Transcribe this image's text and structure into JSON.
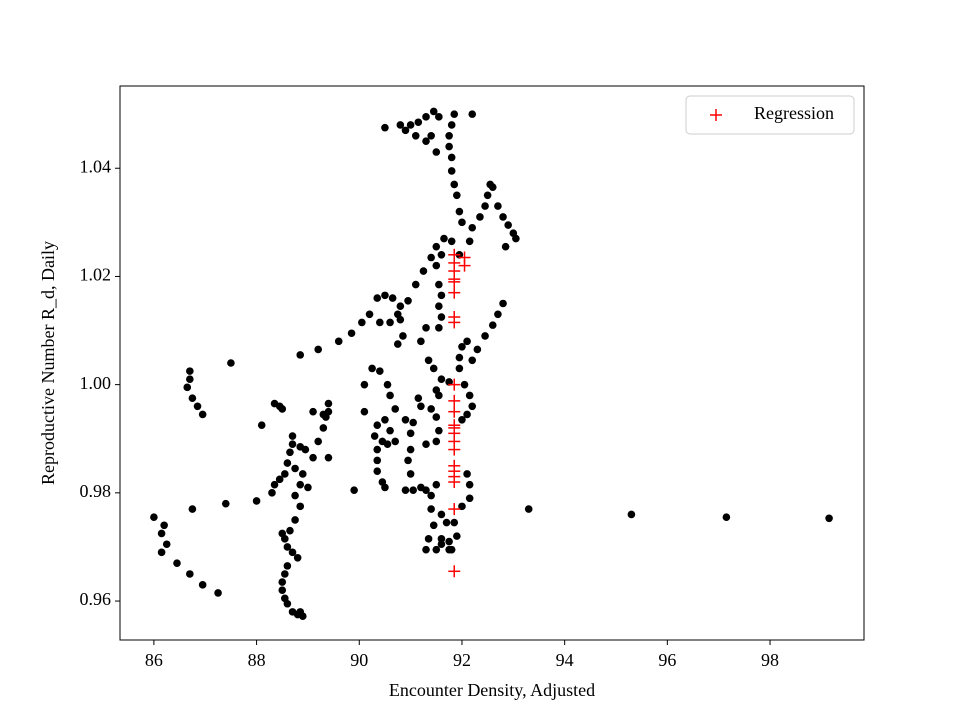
{
  "chart_data": {
    "type": "scatter",
    "x_label": "Encounter Density, Adjusted",
    "y_label": "Reproductive Number R_d, Daily",
    "xlim": [
      85.34,
      99.83
    ],
    "ylim": [
      0.9528,
      1.0552
    ],
    "xticks": [
      86,
      88,
      90,
      92,
      94,
      96,
      98
    ],
    "yticks": [
      0.96,
      0.98,
      {
        "value": 1,
        "label": "1.00"
      },
      1.02,
      1.04
    ],
    "legend_loc": "upper right",
    "series": [
      {
        "color": "#000000",
        "marker": "o",
        "x": [
          86.0,
          86.15,
          86.2,
          86.25,
          86.15,
          86.45,
          86.7,
          86.95,
          87.25,
          86.7,
          86.7,
          86.65,
          86.75,
          86.85,
          86.95,
          87.5,
          86.75,
          87.4,
          88.0,
          88.1,
          88.35,
          88.45,
          88.5,
          88.7,
          88.7,
          88.65,
          88.6,
          88.55,
          88.45,
          88.35,
          88.3,
          88.75,
          88.9,
          88.85,
          88.75,
          89.0,
          89.1,
          89.2,
          89.3,
          89.35,
          89.4,
          89.4,
          89.3,
          89.1,
          88.85,
          88.95,
          88.85,
          88.75,
          88.65,
          88.55,
          88.5,
          88.6,
          88.7,
          88.8,
          88.6,
          88.55,
          88.5,
          88.5,
          88.55,
          88.6,
          88.7,
          88.8,
          88.9,
          88.85,
          88.85,
          89.2,
          89.6,
          89.85,
          90.05,
          90.2,
          90.35,
          90.5,
          90.65,
          90.8,
          90.75,
          90.4,
          90.6,
          90.8,
          90.85,
          90.75,
          90.95,
          91.1,
          91.25,
          91.4,
          91.5,
          91.65,
          91.8,
          91.95,
          91.6,
          91.5,
          91.55,
          91.6,
          91.55,
          91.6,
          91.55,
          91.3,
          91.2,
          91.35,
          91.45,
          91.6,
          91.75,
          91.5,
          91.55,
          90.1,
          90.25,
          90.4,
          90.55,
          90.6,
          90.7,
          90.5,
          90.35,
          90.3,
          90.35,
          90.35,
          90.35,
          90.45,
          90.5,
          90.45,
          90.55,
          90.7,
          90.6,
          90.1,
          89.9,
          89.4,
          90.9,
          91.0,
          91.0,
          90.95,
          91.0,
          90.9,
          91.05,
          91.3,
          91.4,
          91.5,
          91.2,
          91.4,
          91.6,
          91.7,
          91.45,
          91.35,
          91.3,
          91.5,
          91.6,
          91.75,
          91.8,
          91.6,
          91.2,
          91.4,
          91.5,
          91.55,
          91.5,
          91.3,
          91.05,
          91.15,
          92.0,
          92.1,
          92.2,
          92.15,
          92.05,
          91.95,
          91.95,
          92.0,
          92.1,
          92.2,
          92.3,
          92.45,
          92.6,
          92.7,
          92.8,
          92.1,
          92.15,
          92.15,
          92.0,
          91.85,
          91.9,
          91.75,
          92.15,
          92.2,
          92.35,
          92.45,
          92.5,
          92.55,
          92.6,
          92.7,
          92.8,
          92.9,
          93.0,
          93.05,
          92.85,
          92.0,
          91.95,
          91.9,
          91.85,
          91.8,
          91.8,
          91.75,
          91.75,
          91.8,
          91.85,
          92.2,
          91.45,
          91.55,
          91.3,
          91.15,
          91.0,
          90.9,
          90.5,
          90.8,
          91.1,
          91.3,
          91.4,
          91.5,
          93.3,
          95.3,
          97.15,
          99.15
        ],
        "values": [
          0.9755,
          0.9725,
          0.974,
          0.9705,
          0.969,
          0.967,
          0.965,
          0.963,
          0.9615,
          1.0025,
          1.001,
          0.9995,
          0.9975,
          0.996,
          0.9945,
          1.004,
          0.977,
          0.978,
          0.9785,
          0.9925,
          0.9965,
          0.996,
          0.9955,
          0.9905,
          0.989,
          0.9875,
          0.9855,
          0.9835,
          0.9825,
          0.9815,
          0.98,
          0.9845,
          0.9835,
          0.9815,
          0.9795,
          0.981,
          0.9865,
          0.9895,
          0.992,
          0.994,
          0.9965,
          0.995,
          0.9945,
          0.995,
          0.9885,
          0.988,
          0.9775,
          0.975,
          0.973,
          0.9715,
          0.9725,
          0.97,
          0.969,
          0.968,
          0.9665,
          0.965,
          0.9635,
          0.962,
          0.9605,
          0.9595,
          0.958,
          0.9575,
          0.9572,
          0.958,
          1.0055,
          1.0065,
          1.008,
          1.0095,
          1.0115,
          1.013,
          1.016,
          1.0165,
          1.016,
          1.0145,
          1.013,
          1.0115,
          1.0115,
          1.012,
          1.009,
          1.0075,
          1.0155,
          1.0185,
          1.021,
          1.0235,
          1.0255,
          1.027,
          1.0265,
          1.024,
          1.024,
          1.022,
          1.0185,
          1.0165,
          1.0145,
          1.0125,
          1.0105,
          1.0105,
          1.008,
          1.0045,
          1.003,
          1.001,
          1.0005,
          0.999,
          0.998,
          1.0,
          1.003,
          1.0025,
          1.0,
          0.998,
          0.9955,
          0.9935,
          0.9925,
          0.9905,
          0.988,
          0.986,
          0.984,
          0.982,
          0.981,
          0.9895,
          0.989,
          0.9895,
          0.9915,
          0.995,
          0.9805,
          0.9865,
          0.9935,
          0.991,
          0.988,
          0.986,
          0.9835,
          0.9805,
          0.9805,
          0.9805,
          0.9795,
          0.9815,
          0.981,
          0.977,
          0.976,
          0.9745,
          0.974,
          0.9715,
          0.9695,
          0.9695,
          0.9705,
          0.971,
          0.9695,
          0.9715,
          0.996,
          0.9955,
          0.994,
          0.9915,
          0.9895,
          0.989,
          0.993,
          0.9975,
          0.9935,
          0.9945,
          0.996,
          0.998,
          1.0,
          1.003,
          1.005,
          1.007,
          1.008,
          1.0045,
          1.0065,
          1.009,
          1.011,
          1.013,
          1.015,
          0.9835,
          0.9815,
          0.979,
          0.9775,
          0.9745,
          0.972,
          0.9695,
          1.0265,
          1.029,
          1.031,
          1.033,
          1.035,
          1.037,
          1.0365,
          1.033,
          1.031,
          1.0295,
          1.028,
          1.027,
          1.0255,
          1.03,
          1.032,
          1.035,
          1.037,
          1.0395,
          1.042,
          1.044,
          1.046,
          1.048,
          1.05,
          1.05,
          1.0505,
          1.0495,
          1.0495,
          1.0485,
          1.048,
          1.047,
          1.0475,
          1.048,
          1.046,
          1.045,
          1.046,
          1.043,
          0.977,
          0.976,
          0.9755,
          0.9753
        ]
      },
      {
        "name": "Regression",
        "color": "#ff0000",
        "marker": "+",
        "x": [
          91.85,
          91.85,
          91.85,
          91.85,
          91.85,
          91.85,
          91.85,
          91.85,
          91.85,
          91.85,
          91.85,
          91.85,
          91.85,
          91.85,
          91.85,
          91.85,
          91.85,
          91.85,
          91.85,
          91.85,
          91.85,
          91.85,
          92.05,
          92.05
        ],
        "values": [
          1.024,
          1.0225,
          1.021,
          1.0195,
          1.019,
          1.017,
          1.0125,
          1.0115,
          1.0,
          0.997,
          0.995,
          0.9925,
          0.992,
          0.991,
          0.9895,
          0.988,
          0.985,
          0.984,
          0.983,
          0.982,
          0.977,
          0.9655,
          1.0235,
          1.022
        ]
      }
    ]
  }
}
